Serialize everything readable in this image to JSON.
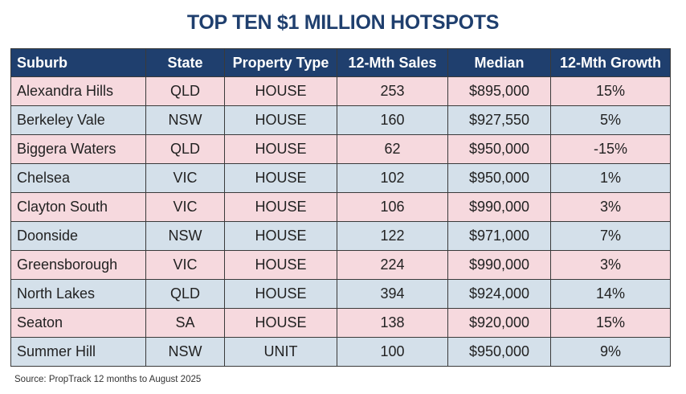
{
  "chart_data": {
    "type": "table",
    "title": "TOP TEN $1 MILLION HOTSPOTS",
    "columns": [
      "Suburb",
      "State",
      "Property Type",
      "12-Mth Sales",
      "Median",
      "12-Mth Growth"
    ],
    "rows": [
      [
        "Alexandra Hills",
        "QLD",
        "HOUSE",
        "253",
        "$895,000",
        "15%"
      ],
      [
        "Berkeley Vale",
        "NSW",
        "HOUSE",
        "160",
        "$927,550",
        "5%"
      ],
      [
        "Biggera Waters",
        "QLD",
        "HOUSE",
        "62",
        "$950,000",
        "-15%"
      ],
      [
        "Chelsea",
        "VIC",
        "HOUSE",
        "102",
        "$950,000",
        "1%"
      ],
      [
        "Clayton South",
        "VIC",
        "HOUSE",
        "106",
        "$990,000",
        "3%"
      ],
      [
        "Doonside",
        "NSW",
        "HOUSE",
        "122",
        "$971,000",
        "7%"
      ],
      [
        "Greensborough",
        "VIC",
        "HOUSE",
        "224",
        "$990,000",
        "3%"
      ],
      [
        "North Lakes",
        "QLD",
        "HOUSE",
        "394",
        "$924,000",
        "14%"
      ],
      [
        "Seaton",
        "SA",
        "HOUSE",
        "138",
        "$920,000",
        "15%"
      ],
      [
        "Summer Hill",
        "NSW",
        "UNIT",
        "100",
        "$950,000",
        "9%"
      ]
    ],
    "source": "Source: PropTrack 12 months to August 2025"
  },
  "colors": {
    "header_bg": "#1f3f6e",
    "title_text": "#1f3f6e",
    "row_pink": "#f6d9de",
    "row_blue": "#d4e0ea"
  }
}
